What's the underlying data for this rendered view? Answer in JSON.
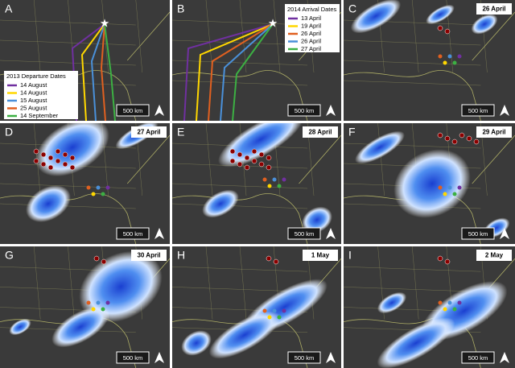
{
  "panels": [
    {
      "letter": "A",
      "scale": "500 km",
      "legend": {
        "title": "2013 Departure Dates",
        "entries": [
          {
            "label": "14 August",
            "color": "#7030a0"
          },
          {
            "label": "14 August",
            "color": "#ffd700"
          },
          {
            "label": "15 August",
            "color": "#4a90d9"
          },
          {
            "label": "25 August",
            "color": "#e06020"
          },
          {
            "label": "14 September",
            "color": "#3cb043"
          }
        ]
      }
    },
    {
      "letter": "B",
      "scale": "500 km",
      "legend": {
        "title": "2014 Arrival Dates",
        "entries": [
          {
            "label": "13 April",
            "color": "#7030a0"
          },
          {
            "label": "19 April",
            "color": "#ffd700"
          },
          {
            "label": "26 April",
            "color": "#e06020"
          },
          {
            "label": "26 April",
            "color": "#4a90d9"
          },
          {
            "label": "27 April",
            "color": "#3cb043"
          }
        ]
      }
    },
    {
      "letter": "C",
      "date": "26 April",
      "scale": "500 km"
    },
    {
      "letter": "D",
      "date": "27 April",
      "scale": "500 km"
    },
    {
      "letter": "E",
      "date": "28 April",
      "scale": "500 km"
    },
    {
      "letter": "F",
      "date": "29 April",
      "scale": "500 km"
    },
    {
      "letter": "G",
      "date": "30 April",
      "scale": "500 km"
    },
    {
      "letter": "H",
      "date": "1 May",
      "scale": "500 km"
    },
    {
      "letter": "I",
      "date": "2 May",
      "scale": "500 km"
    }
  ]
}
